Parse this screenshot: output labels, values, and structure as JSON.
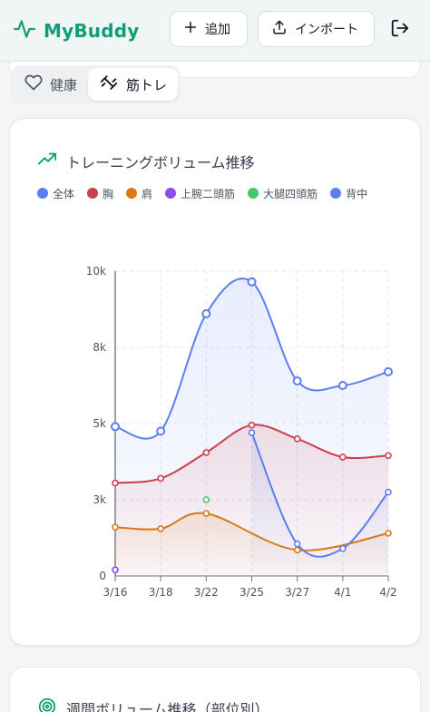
{
  "app": {
    "name": "MyBuddy",
    "brand_color": "#0f9d7a",
    "logo_icon": "activity-pulse-icon"
  },
  "header": {
    "add_label": "追加",
    "import_label": "インポート",
    "logout_icon": "logout-icon"
  },
  "tabs": [
    {
      "label": "健康",
      "icon": "heart-icon",
      "active": false
    },
    {
      "label": "筋トレ",
      "icon": "dumbbell-icon",
      "active": true
    }
  ],
  "volume_card": {
    "title": "トレーニングボリューム推移",
    "icon": "trending-up-icon"
  },
  "chart_data": {
    "type": "line",
    "title": "トレーニングボリューム推移",
    "x": [
      "3/16",
      "3/18",
      "3/22",
      "3/25",
      "3/27",
      "4/1",
      "4/2"
    ],
    "yticks": [
      "0",
      "3k",
      "5k",
      "8k",
      "10k"
    ],
    "ylim": [
      0,
      10000
    ],
    "grid": true,
    "legend_position": "top-left",
    "series": [
      {
        "name": "全体",
        "color": "#5b7ff0",
        "values": [
          4900,
          4750,
          8600,
          9650,
          6400,
          6250,
          6700
        ]
      },
      {
        "name": "胸",
        "color": "#c9424b",
        "values": [
          3050,
          3200,
          4050,
          4950,
          4500,
          3900,
          3950
        ]
      },
      {
        "name": "肩",
        "color": "#d97a1a",
        "values": [
          1600,
          1550,
          2050,
          null,
          850,
          null,
          1400
        ]
      },
      {
        "name": "上腕二頭筋",
        "color": "#8a4bf0",
        "values": [
          200,
          null,
          null,
          null,
          null,
          null,
          null
        ]
      },
      {
        "name": "大腿四頭筋",
        "color": "#44c768",
        "values": [
          null,
          null,
          2500,
          null,
          null,
          null,
          null
        ]
      },
      {
        "name": "背中",
        "color": "#5b7ff0",
        "values": [
          null,
          null,
          null,
          4700,
          1050,
          900,
          2750
        ]
      }
    ]
  },
  "weekly_card": {
    "title": "週間ボリューム推移（部位別）",
    "icon": "target-icon"
  }
}
